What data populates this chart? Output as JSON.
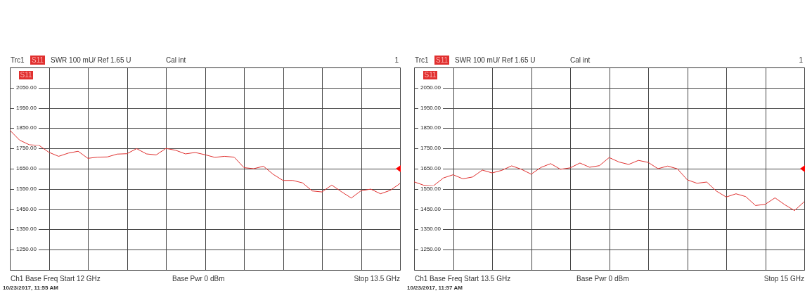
{
  "chart_data": [
    {
      "type": "line",
      "categories": [
        null,
        null,
        null,
        null,
        null,
        null,
        null,
        null,
        null,
        null,
        null,
        null,
        null,
        null,
        null,
        null,
        null,
        null,
        null,
        null,
        null,
        null,
        null,
        null,
        null,
        null,
        null,
        null,
        null,
        null,
        null,
        null,
        null,
        null,
        null,
        null,
        null,
        null,
        null,
        null,
        null
      ],
      "series": [
        {
          "name": "S11",
          "color": "#e0302f",
          "values": [
            1840,
            1791,
            1768,
            1765,
            1731,
            1711,
            1727,
            1736,
            1701,
            1707,
            1708,
            1722,
            1724,
            1749,
            1723,
            1718,
            1750,
            1741,
            1723,
            1730,
            1719,
            1706,
            1711,
            1707,
            1655,
            1650,
            1662,
            1622,
            1592,
            1592,
            1580,
            1540,
            1535,
            1569,
            1536,
            1505,
            1541,
            1549,
            1526,
            1543,
            1577
          ]
        }
      ],
      "ylim": [
        1150,
        2150
      ],
      "yticks": [
        {
          "value": 1250,
          "label": "1250.00"
        },
        {
          "value": 1350,
          "label": "1350.00"
        },
        {
          "value": 1450,
          "label": "1450.00"
        },
        {
          "value": 1550,
          "label": "1550.00"
        },
        {
          "value": 1650,
          "label": "1650.00"
        },
        {
          "value": 1750,
          "label": "1750.00"
        },
        {
          "value": 1850,
          "label": "1850.00"
        },
        {
          "value": 1950,
          "label": "1950.00"
        },
        {
          "value": 2050,
          "label": "2050.00"
        }
      ],
      "tick_labels": "y",
      "grid": true,
      "annotations": [
        "Trc1",
        "S11",
        "SWR  100 mU/  Ref 1.65 U",
        "Cal int",
        "1",
        "Ch1  Base Freq  Start  12 GHz",
        "Base Pwr  0 dBm",
        "Stop  13.5 GHz",
        "10/23/2017, 11:55 AM"
      ]
    },
    {
      "type": "line",
      "categories": [
        null,
        null,
        null,
        null,
        null,
        null,
        null,
        null,
        null,
        null,
        null,
        null,
        null,
        null,
        null,
        null,
        null,
        null,
        null,
        null,
        null,
        null,
        null,
        null,
        null,
        null,
        null,
        null,
        null,
        null,
        null,
        null,
        null,
        null,
        null,
        null,
        null,
        null,
        null,
        null,
        null
      ],
      "series": [
        {
          "name": "S11",
          "color": "#e0302f",
          "values": [
            1585,
            1568,
            1566,
            1604,
            1620,
            1600,
            1609,
            1643,
            1629,
            1642,
            1664,
            1647,
            1623,
            1656,
            1675,
            1647,
            1654,
            1678,
            1657,
            1665,
            1705,
            1683,
            1671,
            1691,
            1681,
            1650,
            1663,
            1649,
            1595,
            1578,
            1584,
            1539,
            1510,
            1526,
            1512,
            1468,
            1474,
            1506,
            1472,
            1443,
            1487
          ]
        }
      ],
      "ylim": [
        1150,
        2150
      ],
      "yticks": [
        {
          "value": 1250,
          "label": "1250.00"
        },
        {
          "value": 1350,
          "label": "1350.00"
        },
        {
          "value": 1450,
          "label": "1450.00"
        },
        {
          "value": 1550,
          "label": "1550.00"
        },
        {
          "value": 1650,
          "label": "1650.00"
        },
        {
          "value": 1750,
          "label": "1750.00"
        },
        {
          "value": 1850,
          "label": "1850.00"
        },
        {
          "value": 1950,
          "label": "1950.00"
        },
        {
          "value": 2050,
          "label": "2050.00"
        }
      ],
      "tick_labels": "y",
      "grid": true,
      "annotations": [
        "Trc1",
        "S11",
        "SWR  100 mU/  Ref 1.65 U",
        "Cal int",
        "1",
        "Ch1  Base Freq  Start  13.5 GHz",
        "Base Pwr  0 dBm",
        "Stop  15 GHz",
        "10/23/2017, 11:57 AM"
      ]
    }
  ]
}
